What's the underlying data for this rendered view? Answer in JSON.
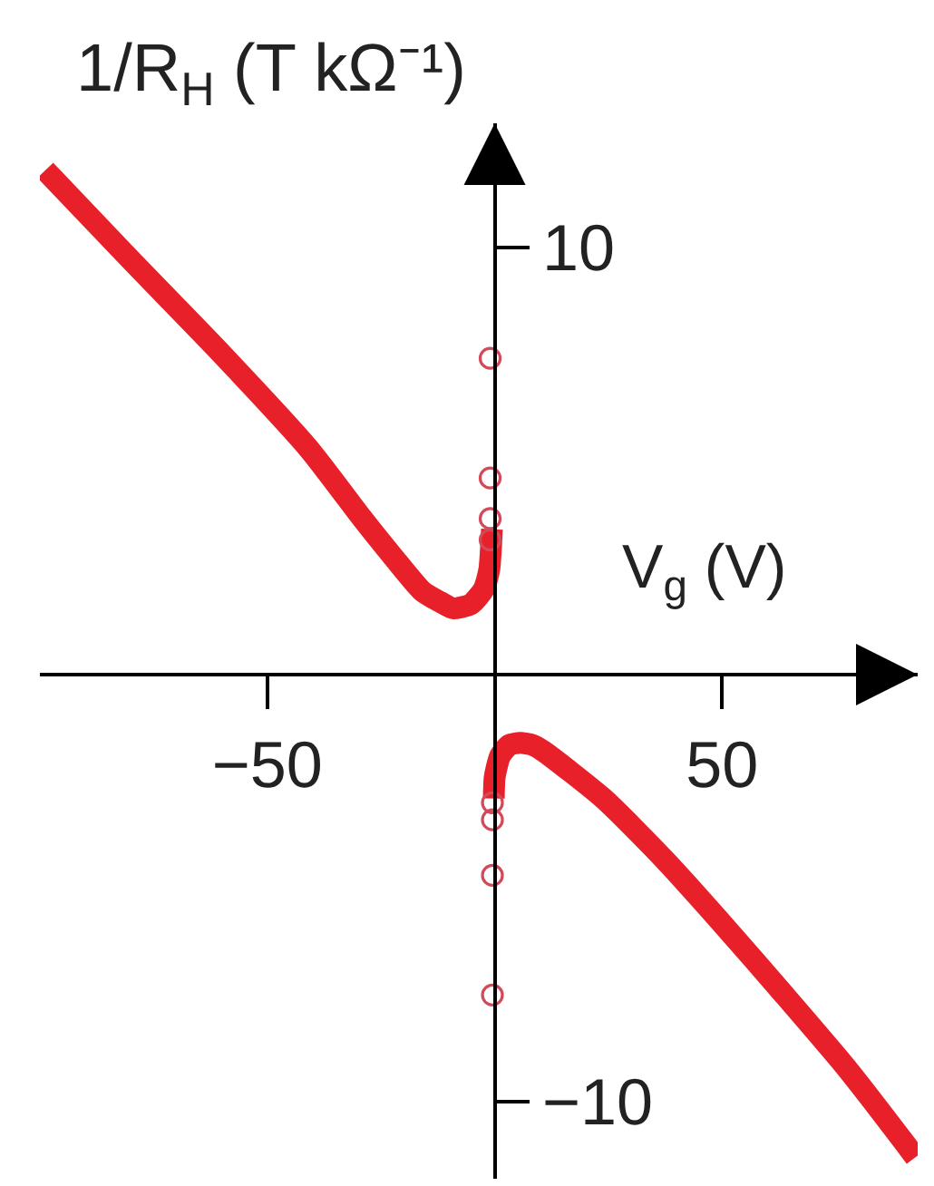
{
  "chart_data": {
    "type": "line",
    "xlabel": "V$_{g}$ (V)",
    "ylabel": "1/R$_{H}$ (T kΩ⁻¹)",
    "xlim": [
      -100,
      93
    ],
    "ylim": [
      -11.8,
      12.9
    ],
    "xticks": [
      {
        "value": -50,
        "label": "−50"
      },
      50
    ],
    "yticks": [
      10,
      {
        "value": -10,
        "label": "−10"
      }
    ],
    "series": [
      {
        "color": "#e8202a",
        "x": [
          -98.8,
          -80,
          -60,
          -41,
          -29.1,
          -22.3,
          -15.9,
          -12,
          -9.2,
          -5.2,
          -2.4,
          -1.2,
          -0.8,
          -0.6,
          null,
          -0.2,
          0,
          1.2,
          3.2,
          5.6,
          8.4,
          10.8,
          23.9,
          37.5,
          50.6,
          63.7,
          77.3,
          90.4,
          92.5
        ],
        "values": [
          11.8,
          9.7,
          7.5,
          5.3,
          3.65,
          2.75,
          1.95,
          1.7,
          1.55,
          1.65,
          2.0,
          2.45,
          3.0,
          3.4,
          null,
          -2.9,
          -2.4,
          -1.9,
          -1.65,
          -1.6,
          -1.65,
          -1.8,
          -2.9,
          -4.35,
          -5.9,
          -7.5,
          -9.2,
          -11.0,
          -11.3
        ]
      },
      {
        "type": "scatter",
        "marker": "circle",
        "color": "#d24a5a",
        "x": [
          -1,
          -1,
          -1,
          -1,
          -0.5,
          -0.5,
          -0.5,
          -0.5
        ],
        "values": [
          7.4,
          4.6,
          3.65,
          3.15,
          -3.0,
          -3.4,
          -4.7,
          -7.5
        ]
      }
    ]
  }
}
